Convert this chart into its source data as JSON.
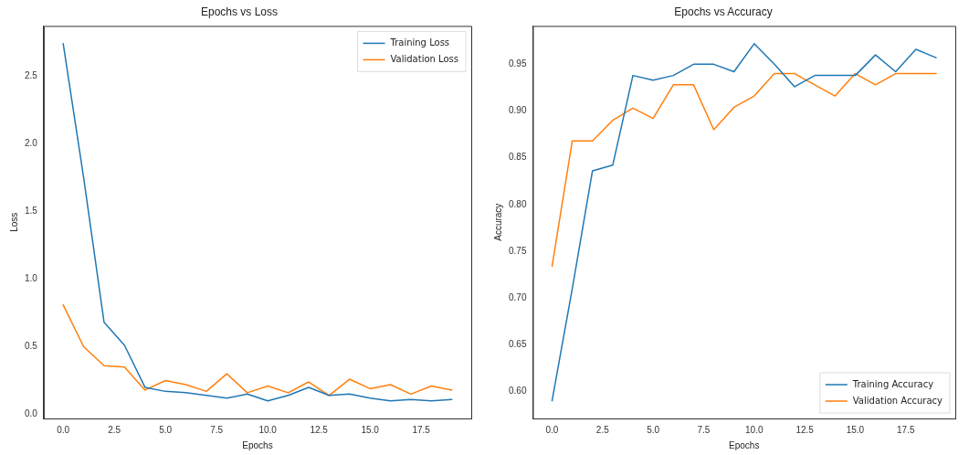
{
  "chart_data": [
    {
      "type": "line",
      "title": "Epochs vs Loss",
      "xlabel": "Epochs",
      "ylabel": "Loss",
      "x": [
        0,
        1,
        2,
        3,
        4,
        5,
        6,
        7,
        8,
        9,
        10,
        11,
        12,
        13,
        14,
        15,
        16,
        17,
        18,
        19
      ],
      "series": [
        {
          "name": "Training Loss",
          "color": "#1f77b4",
          "values": [
            2.74,
            1.75,
            0.68,
            0.51,
            0.2,
            0.17,
            0.16,
            0.14,
            0.12,
            0.15,
            0.1,
            0.14,
            0.2,
            0.14,
            0.15,
            0.12,
            0.1,
            0.11,
            0.1,
            0.11
          ]
        },
        {
          "name": "Validation Loss",
          "color": "#ff7f0e",
          "values": [
            0.81,
            0.5,
            0.36,
            0.35,
            0.18,
            0.25,
            0.22,
            0.17,
            0.3,
            0.16,
            0.21,
            0.16,
            0.24,
            0.14,
            0.26,
            0.19,
            0.22,
            0.15,
            0.21,
            0.18
          ]
        }
      ],
      "xlim": [
        -0.95,
        19.95
      ],
      "xticks": [
        {
          "value": 0,
          "label": "0.0"
        },
        2.5,
        {
          "value": 5,
          "label": "5.0"
        },
        7.5,
        {
          "value": 10,
          "label": "10.0"
        },
        12.5,
        {
          "value": 15,
          "label": "15.0"
        },
        17.5
      ],
      "ylim": [
        -0.03,
        2.87
      ],
      "yticks": [
        {
          "value": 0,
          "label": "0.0"
        },
        0.5,
        {
          "value": 1,
          "label": "1.0"
        },
        1.5,
        {
          "value": 2,
          "label": "2.0"
        },
        2.5
      ],
      "grid": false,
      "legend": "top right",
      "marker": "none",
      "line_style": "solid"
    },
    {
      "type": "line",
      "title": "Epochs vs Accuracy",
      "xlabel": "Epochs",
      "ylabel": "Accuracy",
      "x": [
        0,
        1,
        2,
        3,
        4,
        5,
        6,
        7,
        8,
        9,
        10,
        11,
        12,
        13,
        14,
        15,
        16,
        17,
        18,
        19
      ],
      "series": [
        {
          "name": "Training Accuracy",
          "color": "#1f77b4",
          "values": [
            0.59,
            0.71,
            0.836,
            0.842,
            0.938,
            0.933,
            0.938,
            0.95,
            0.95,
            0.942,
            0.972,
            0.95,
            0.926,
            0.938,
            0.938,
            0.938,
            0.96,
            0.942,
            0.966,
            0.957
          ]
        },
        {
          "name": "Validation Accuracy",
          "color": "#ff7f0e",
          "values": [
            0.734,
            0.868,
            0.868,
            0.89,
            0.903,
            0.892,
            0.928,
            0.928,
            0.88,
            0.904,
            0.916,
            0.94,
            0.94,
            0.928,
            0.916,
            0.94,
            0.928,
            0.94,
            0.94,
            0.94
          ]
        }
      ],
      "xlim": [
        -0.95,
        19.95
      ],
      "xticks": [
        {
          "value": 0,
          "label": "0.0"
        },
        2.5,
        {
          "value": 5,
          "label": "5.0"
        },
        7.5,
        {
          "value": 10,
          "label": "10.0"
        },
        12.5,
        {
          "value": 15,
          "label": "15.0"
        },
        17.5
      ],
      "ylim": [
        0.571,
        0.991
      ],
      "yticks": [
        {
          "value": 0.6,
          "label": "0.60"
        },
        0.65,
        {
          "value": 0.7,
          "label": "0.70"
        },
        0.75,
        {
          "value": 0.8,
          "label": "0.80"
        },
        0.85,
        {
          "value": 0.9,
          "label": "0.90"
        },
        0.95
      ],
      "grid": false,
      "legend": "bottom right",
      "marker": "none",
      "line_style": "solid"
    }
  ]
}
